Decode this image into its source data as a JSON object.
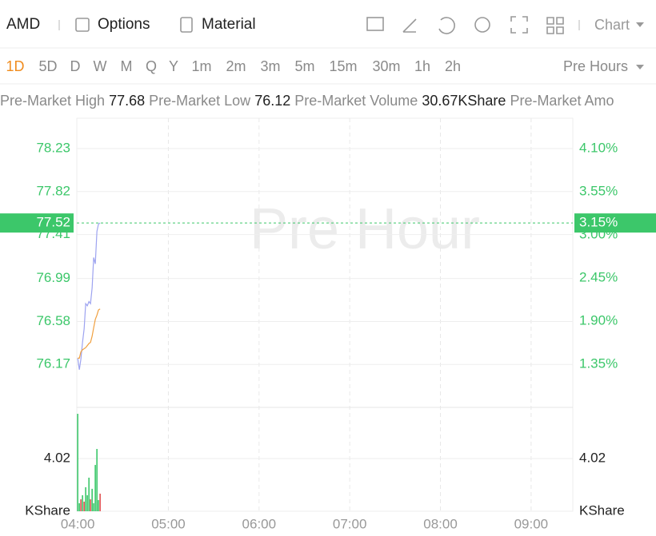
{
  "header": {
    "symbol": "AMD",
    "menu": [
      "Options",
      "Material"
    ],
    "chart_type": "Chart"
  },
  "periods": {
    "items": [
      "1D",
      "5D",
      "D",
      "W",
      "M",
      "Q",
      "Y",
      "1m",
      "2m",
      "3m",
      "5m",
      "15m",
      "30m",
      "1h",
      "2h"
    ],
    "active": 0,
    "session": "Pre Hours"
  },
  "stats": [
    {
      "label": "Pre-Market High",
      "value": "77.68"
    },
    {
      "label": "Pre-Market Low",
      "value": "76.12"
    },
    {
      "label": "Pre-Market Volume",
      "value": "30.67KShare"
    },
    {
      "label": "Pre-Market Amo"
    }
  ],
  "chart_data": {
    "type": "line",
    "watermark": "Pre Hour",
    "x": [
      4.0,
      4.018,
      4.035,
      4.053,
      4.071,
      4.088,
      4.106,
      4.124,
      4.141,
      4.159,
      4.176,
      4.194,
      4.212,
      4.229,
      4.247
    ],
    "series": [
      {
        "color": "#9da3f0",
        "values": [
          76.23,
          76.12,
          76.22,
          76.38,
          76.51,
          76.75,
          76.73,
          76.77,
          76.75,
          76.9,
          77.19,
          77.13,
          77.44,
          77.51,
          77.52
        ]
      },
      {
        "color": "#f0a040",
        "values": [
          76.23,
          76.23,
          76.29,
          76.31,
          76.32,
          76.33,
          76.35,
          76.37,
          76.38,
          76.44,
          76.52,
          76.6,
          76.64,
          76.69,
          76.7
        ]
      }
    ],
    "xlim": [
      3.99,
      9.46
    ],
    "xticks": [
      {
        "value": 4,
        "label": "04:00"
      },
      {
        "value": 5,
        "label": "05:00"
      },
      {
        "value": 6,
        "label": "06:00"
      },
      {
        "value": 7,
        "label": "07:00"
      },
      {
        "value": 8,
        "label": "08:00"
      },
      {
        "value": 9,
        "label": "09:00"
      }
    ],
    "ylim": [
      75.76,
      78.52
    ],
    "yticks": [
      78.23,
      77.82,
      77.41,
      76.99,
      76.58,
      76.17
    ],
    "y2lim": [
      0.8,
      4.49
    ],
    "y2ticks": [
      {
        "value": 4.1,
        "label": "4.10%"
      },
      {
        "value": 3.55,
        "label": "3.55%"
      },
      {
        "value": 3.0,
        "label": "3.00%"
      },
      {
        "value": 2.45,
        "label": "2.45%"
      },
      {
        "value": 1.9,
        "label": "1.90%"
      },
      {
        "value": 1.35,
        "label": "1.35%"
      }
    ],
    "last": {
      "value": 77.52,
      "pct": {
        "value": 3.15,
        "label": "3.15%"
      },
      "color": "#3cc76a"
    },
    "grid": true,
    "volume": {
      "unit": "KShare",
      "ylim": [
        0,
        7.92
      ],
      "yticks": [
        4.02
      ],
      "values": [
        7.43,
        0.61,
        0.91,
        1.22,
        0.73,
        1.83,
        1.22,
        2.56,
        0.91,
        1.71,
        0.61,
        3.53,
        4.75,
        0.85,
        1.34
      ],
      "colors": [
        "#3cc76a",
        "#3cc76a",
        "#e05050",
        "#3cc76a",
        "#e05050",
        "#3cc76a",
        "#3cc76a",
        "#3cc76a",
        "#e05050",
        "#3cc76a",
        "#3cc76a",
        "#3cc76a",
        "#3cc76a",
        "#3cc76a",
        "#e05050"
      ]
    }
  }
}
